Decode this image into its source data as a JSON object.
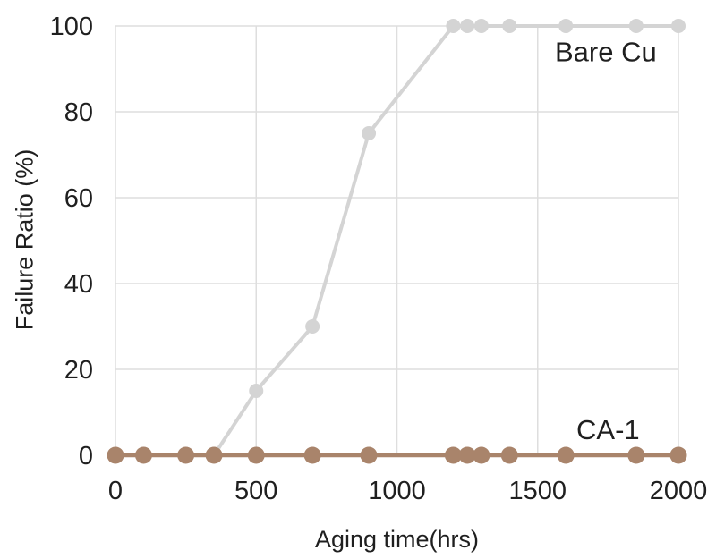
{
  "page": {
    "background_color": "#ffffff",
    "text_color": "#1f1f1f"
  },
  "chart_data": {
    "type": "line",
    "title": "",
    "xlabel": "Aging time(hrs)",
    "ylabel": "Failure Ratio (%)",
    "xlim": [
      0,
      2000
    ],
    "ylim": [
      0,
      100
    ],
    "x_ticks": [
      0,
      500,
      1000,
      1500,
      2000
    ],
    "y_ticks": [
      0,
      20,
      40,
      60,
      80,
      100
    ],
    "grid": true,
    "grid_color": "#dedede",
    "legend_position": "inline-annotations",
    "series": [
      {
        "name": "Bare Cu",
        "line_color": "#d4d4d4",
        "marker_color": "#d4d4d4",
        "line_width": 4,
        "marker_radius": 8,
        "x": [
          350,
          500,
          700,
          900,
          1200,
          1250,
          1300,
          1400,
          1600,
          1850,
          2000
        ],
        "y": [
          0,
          15,
          30,
          75,
          100,
          100,
          100,
          100,
          100,
          100,
          100
        ]
      },
      {
        "name": "CA-1",
        "line_color": "#a9846b",
        "marker_color": "#a9846b",
        "line_width": 4.5,
        "marker_radius": 9.5,
        "x": [
          0,
          100,
          250,
          350,
          500,
          700,
          900,
          1200,
          1250,
          1300,
          1400,
          1600,
          1850,
          2000
        ],
        "y": [
          0,
          0,
          0,
          0,
          0,
          0,
          0,
          0,
          0,
          0,
          0,
          0,
          0,
          0
        ]
      }
    ],
    "annotations": [
      {
        "text": "Bare Cu",
        "x": 1742,
        "y": 94,
        "color": "#1f1f1f",
        "font_size": 31
      },
      {
        "text": "CA-1",
        "x": 1750,
        "y": 6,
        "color": "#1f1f1f",
        "font_size": 31
      }
    ],
    "tick_font_size": 29,
    "tick_color": "#1f1f1f"
  }
}
